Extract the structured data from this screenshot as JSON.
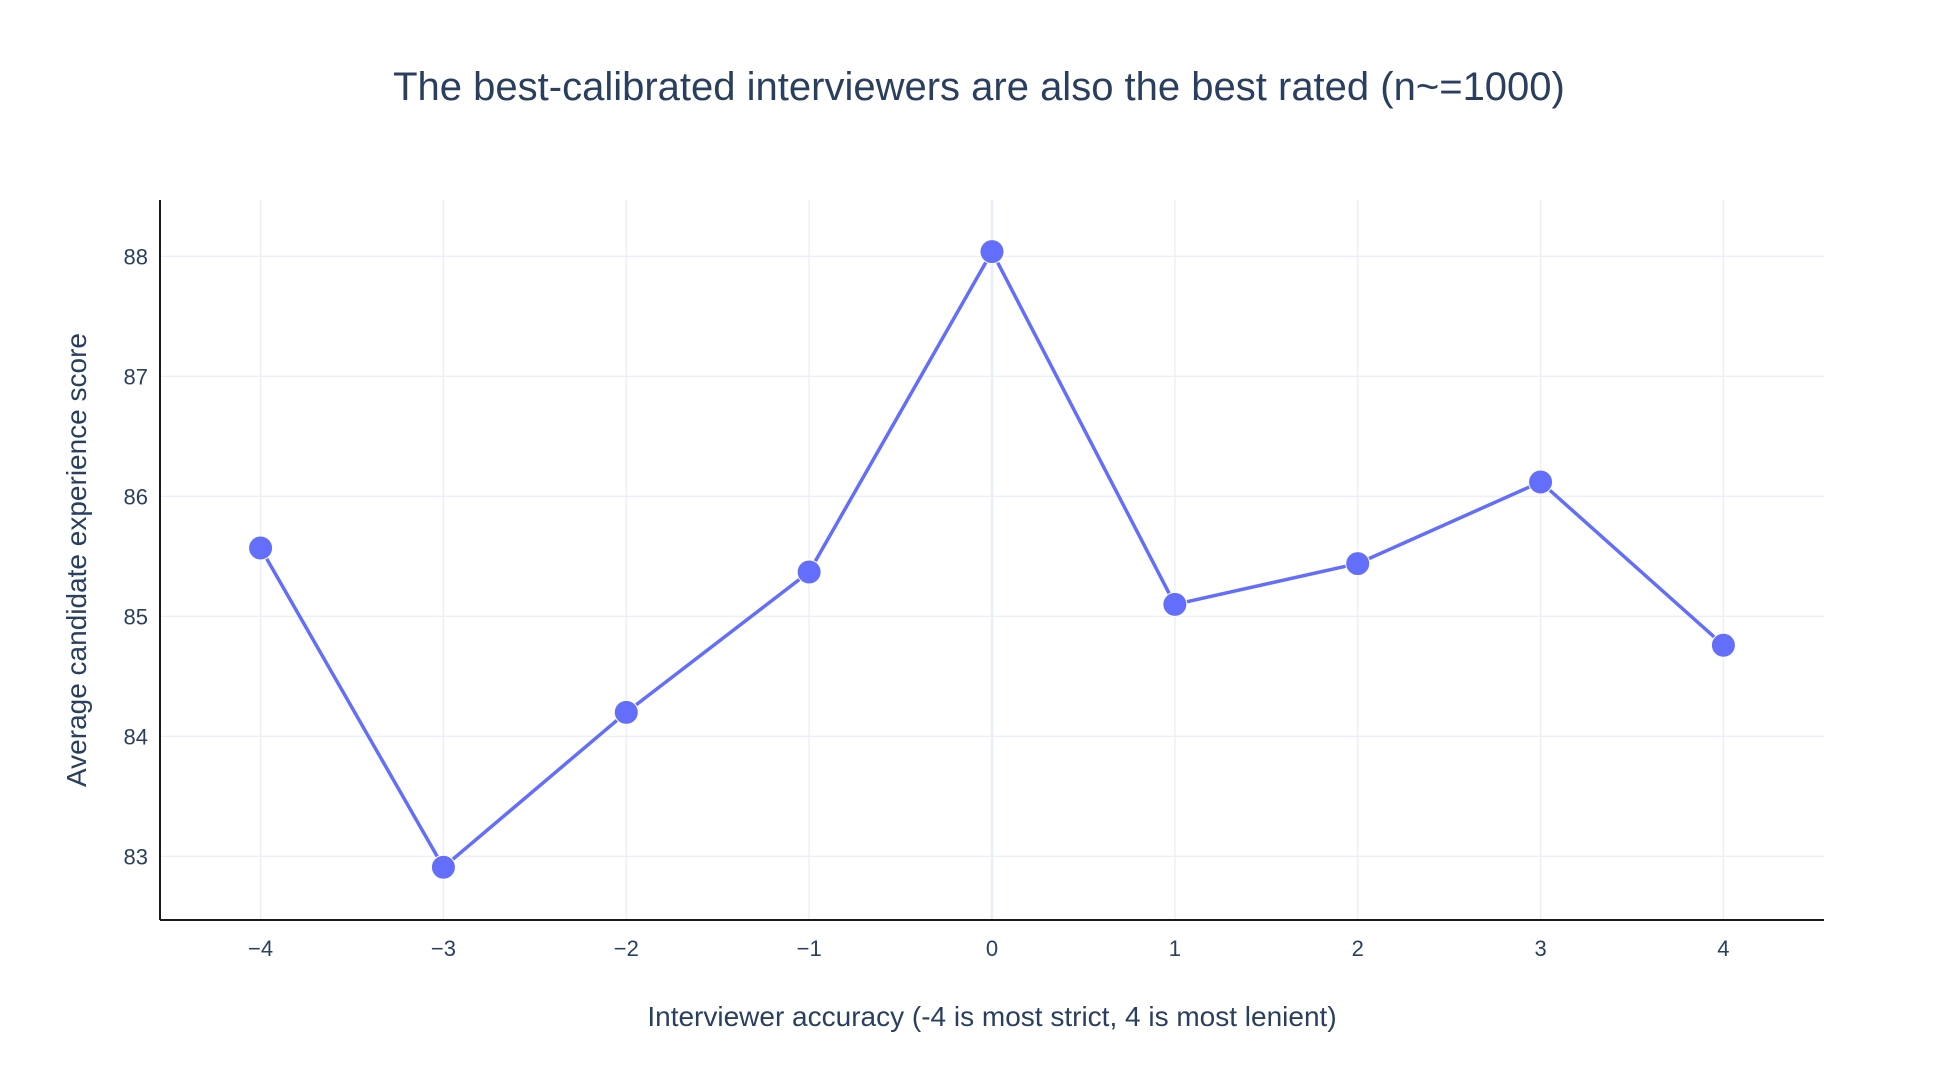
{
  "chart_data": {
    "type": "line",
    "title": "The best-calibrated interviewers are also the best rated (n~=1000)",
    "xlabel": "Interviewer accuracy (-4 is most strict, 4 is most lenient)",
    "ylabel": "Average candidate experience score",
    "x": [
      -4,
      -3,
      -2,
      -1,
      0,
      1,
      2,
      3,
      4
    ],
    "series": [
      {
        "values": [
          85.57,
          82.91,
          84.2,
          85.37,
          88.04,
          85.1,
          85.44,
          86.12,
          84.76
        ]
      }
    ],
    "xlim": [
      -4.55,
      4.55
    ],
    "ylim": [
      82.47,
      88.47
    ],
    "xticks": [
      -4,
      -3,
      -2,
      -1,
      0,
      1,
      2,
      3,
      4
    ],
    "xtick_labels": [
      "−4",
      "−3",
      "−2",
      "−1",
      "0",
      "1",
      "2",
      "3",
      "4"
    ],
    "yticks": [
      83,
      84,
      85,
      86,
      87,
      88
    ],
    "ytick_labels": [
      "83",
      "84",
      "85",
      "86",
      "87",
      "88"
    ],
    "grid": true,
    "legend": "none",
    "colors": {
      "series": "#636efa",
      "grid": "#ebf0f8",
      "text": "#2a3f5f",
      "axis": "#1a1a1a"
    }
  }
}
